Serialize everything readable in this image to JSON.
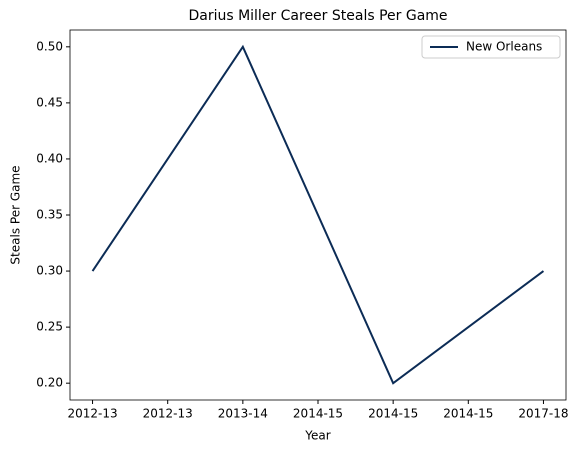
{
  "chart_data": {
    "type": "line",
    "title": "Darius Miller Career Steals Per Game",
    "xlabel": "Year",
    "ylabel": "Steals Per Game",
    "x": [
      0,
      1,
      2,
      3
    ],
    "series": [
      {
        "name": "New Orleans",
        "color": "#0c2c56",
        "values": [
          0.3,
          0.5,
          0.2,
          0.3
        ]
      }
    ],
    "xlim": [
      -0.15,
      3.15
    ],
    "xticks": [
      {
        "value": 0,
        "label": "2012-13"
      },
      {
        "value": 0.5,
        "label": "2012-13"
      },
      {
        "value": 1,
        "label": "2013-14"
      },
      {
        "value": 1.5,
        "label": "2014-15"
      },
      {
        "value": 2,
        "label": "2014-15"
      },
      {
        "value": 2.5,
        "label": "2014-15"
      },
      {
        "value": 3,
        "label": "2017-18"
      }
    ],
    "ylim": [
      0.185,
      0.515
    ],
    "yticks": [
      {
        "value": 0.2,
        "label": "0.20"
      },
      0.25,
      {
        "value": 0.3,
        "label": "0.30"
      },
      0.35,
      {
        "value": 0.4,
        "label": "0.40"
      },
      0.45,
      {
        "value": 0.5,
        "label": "0.50"
      }
    ],
    "legend": "upper right",
    "grid": false
  }
}
